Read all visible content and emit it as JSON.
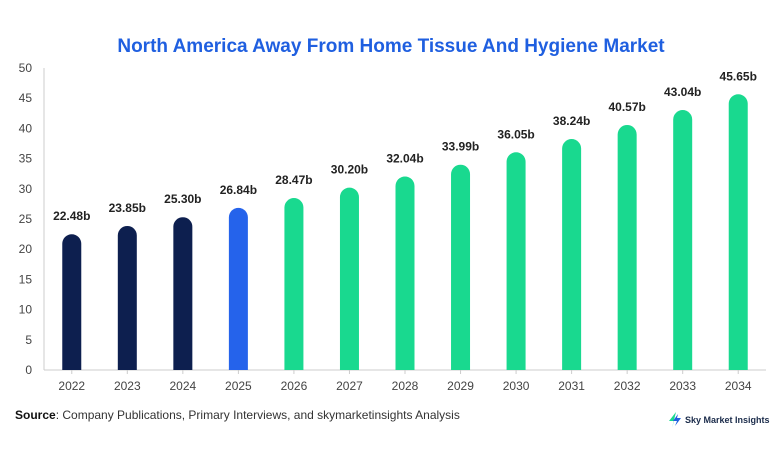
{
  "chart_data": {
    "type": "bar",
    "title": "North America Away From Home Tissue And Hygiene Market",
    "categories": [
      "2022",
      "2023",
      "2024",
      "2025",
      "2026",
      "2027",
      "2028",
      "2029",
      "2030",
      "2031",
      "2032",
      "2033",
      "2034"
    ],
    "values": [
      22.48,
      23.85,
      25.3,
      26.84,
      28.47,
      30.2,
      32.04,
      33.99,
      36.05,
      38.24,
      40.57,
      43.04,
      45.65
    ],
    "data_labels": [
      "22.48b",
      "23.85b",
      "25.30b",
      "26.84b",
      "28.47b",
      "30.20b",
      "32.04b",
      "33.99b",
      "36.05b",
      "38.24b",
      "40.57b",
      "43.04b",
      "45.65b"
    ],
    "bar_colors": [
      "#0d1f4f",
      "#0d1f4f",
      "#0d1f4f",
      "#2563eb",
      "#19d98f",
      "#19d98f",
      "#19d98f",
      "#19d98f",
      "#19d98f",
      "#19d98f",
      "#19d98f",
      "#19d98f",
      "#19d98f"
    ],
    "title_color": "#1f5fe0",
    "ylim": [
      0,
      50
    ],
    "yticks": [
      0,
      5,
      10,
      15,
      20,
      25,
      30,
      35,
      40,
      45,
      50
    ],
    "grid": false,
    "xlabel": "",
    "ylabel": ""
  },
  "footer": {
    "source_label": "Source",
    "source_text": ": Company Publications, Primary Interviews, and skymarketinsights Analysis"
  },
  "brand": {
    "name": "Sky Market Insights",
    "icon": "lightning-bolt-icon",
    "icon_colors": [
      "#19d98f",
      "#1f5fe0"
    ]
  }
}
